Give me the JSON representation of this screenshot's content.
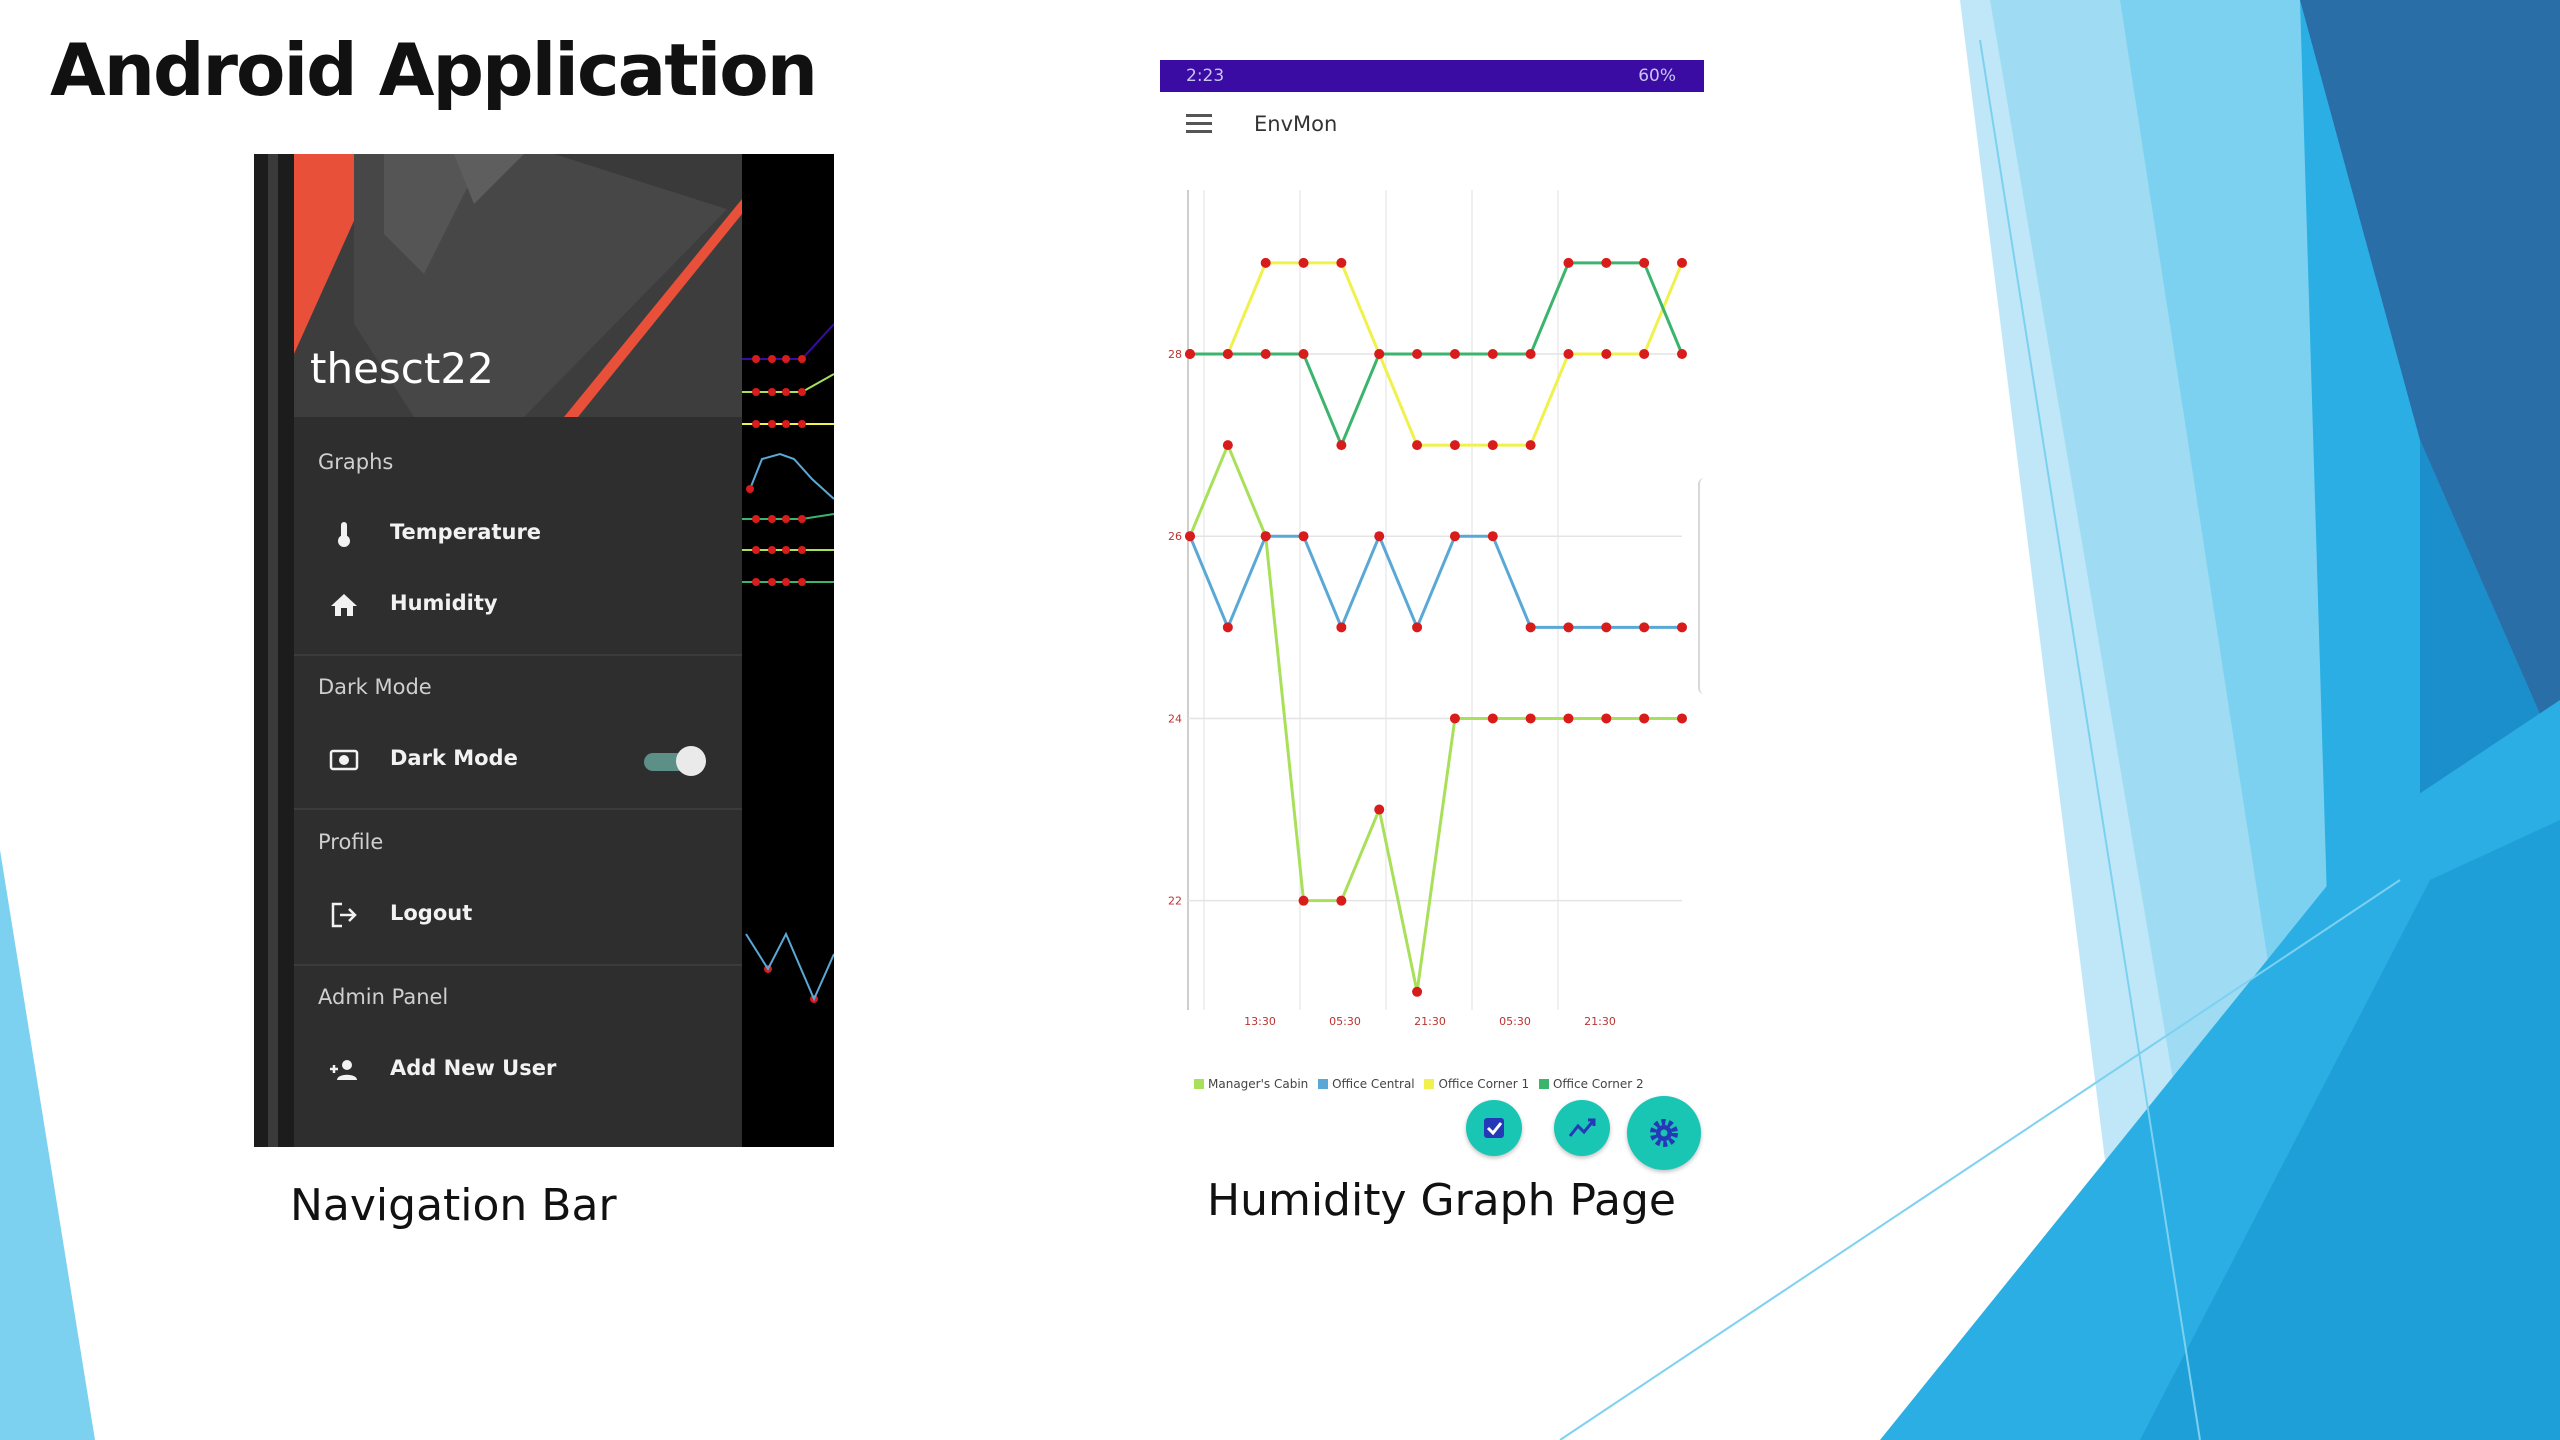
{
  "slide": {
    "title": "Android Application",
    "caption_nav": "Navigation Bar",
    "caption_humidity": "Humidity Graph Page",
    "colors": {
      "blue_1": "#7dd1f0",
      "blue_2": "#2aaee3",
      "blue_3": "#1b8fcb",
      "blue_dark": "#2a6ea8"
    }
  },
  "nav_drawer": {
    "username": "thesct22",
    "colors": {
      "drawer_bg": "#2e2e2e",
      "header_bg": "#3d3d3d",
      "accent": "#e8503a",
      "toggle": "#5c8f86"
    },
    "sections": [
      {
        "label": "Graphs",
        "items": [
          {
            "label": "Temperature",
            "icon": "thermometer-icon"
          },
          {
            "label": "Humidity",
            "icon": "home-icon"
          }
        ]
      },
      {
        "label": "Dark Mode",
        "items": [
          {
            "label": "Dark Mode",
            "icon": "dark-mode-icon",
            "toggle_on": true
          }
        ]
      },
      {
        "label": "Profile",
        "items": [
          {
            "label": "Logout",
            "icon": "logout-icon"
          }
        ]
      },
      {
        "label": "Admin Panel",
        "items": [
          {
            "label": "Add New User",
            "icon": "add-user-icon"
          }
        ]
      }
    ]
  },
  "humidity_page": {
    "status_time": "2:23",
    "status_right": "60%",
    "app_title": "EnvMon",
    "colors": {
      "status_bar": "#3a0ca3",
      "fab": "#19c5b3"
    },
    "legend": [
      "Manager's Cabin",
      "Office Central",
      "Office Corner 1",
      "Office Corner 2"
    ],
    "fabs": [
      "check-icon",
      "trending-icon",
      "gear-icon"
    ]
  },
  "chart_data": {
    "type": "line",
    "title": "",
    "xlabel": "",
    "ylabel": "",
    "ylim": [
      20.8,
      29.8
    ],
    "ytick_labels": [
      "22",
      "24",
      "26",
      "28"
    ],
    "yticks": [
      22,
      24,
      26,
      28
    ],
    "xtick_labels": [
      "13:30",
      "05:30",
      "21:30",
      "05:30",
      "21:30"
    ],
    "grid": true,
    "legend_position": "bottom",
    "point_color": "#d81b1b",
    "series": [
      {
        "name": "Manager's Cabin",
        "color": "#a8e05a",
        "x": [
          0,
          1,
          2,
          3,
          4,
          5,
          6,
          7,
          8,
          9,
          10,
          11,
          12,
          13
        ],
        "values": [
          26,
          27,
          26,
          22,
          22,
          23,
          21,
          24,
          24,
          24,
          24,
          24,
          24,
          24
        ]
      },
      {
        "name": "Office Central",
        "color": "#5aa8d6",
        "x": [
          0,
          1,
          2,
          3,
          4,
          5,
          6,
          7,
          8,
          9,
          10,
          11,
          12,
          13
        ],
        "values": [
          26,
          25,
          26,
          26,
          25,
          26,
          25,
          26,
          26,
          25,
          25,
          25,
          25,
          25
        ]
      },
      {
        "name": "Office Corner 1",
        "color": "#f1f14e",
        "x": [
          0,
          1,
          2,
          3,
          4,
          5,
          6,
          7,
          8,
          9,
          10,
          11,
          12,
          13
        ],
        "values": [
          28,
          28,
          29,
          29,
          29,
          28,
          27,
          27,
          27,
          27,
          28,
          28,
          28,
          29
        ]
      },
      {
        "name": "Office Corner 2",
        "color": "#3cb46e",
        "x": [
          0,
          1,
          2,
          3,
          4,
          5,
          6,
          7,
          8,
          9,
          10,
          11,
          12,
          13
        ],
        "values": [
          28,
          28,
          28,
          28,
          27,
          28,
          28,
          28,
          28,
          28,
          29,
          29,
          29,
          28
        ]
      }
    ]
  }
}
